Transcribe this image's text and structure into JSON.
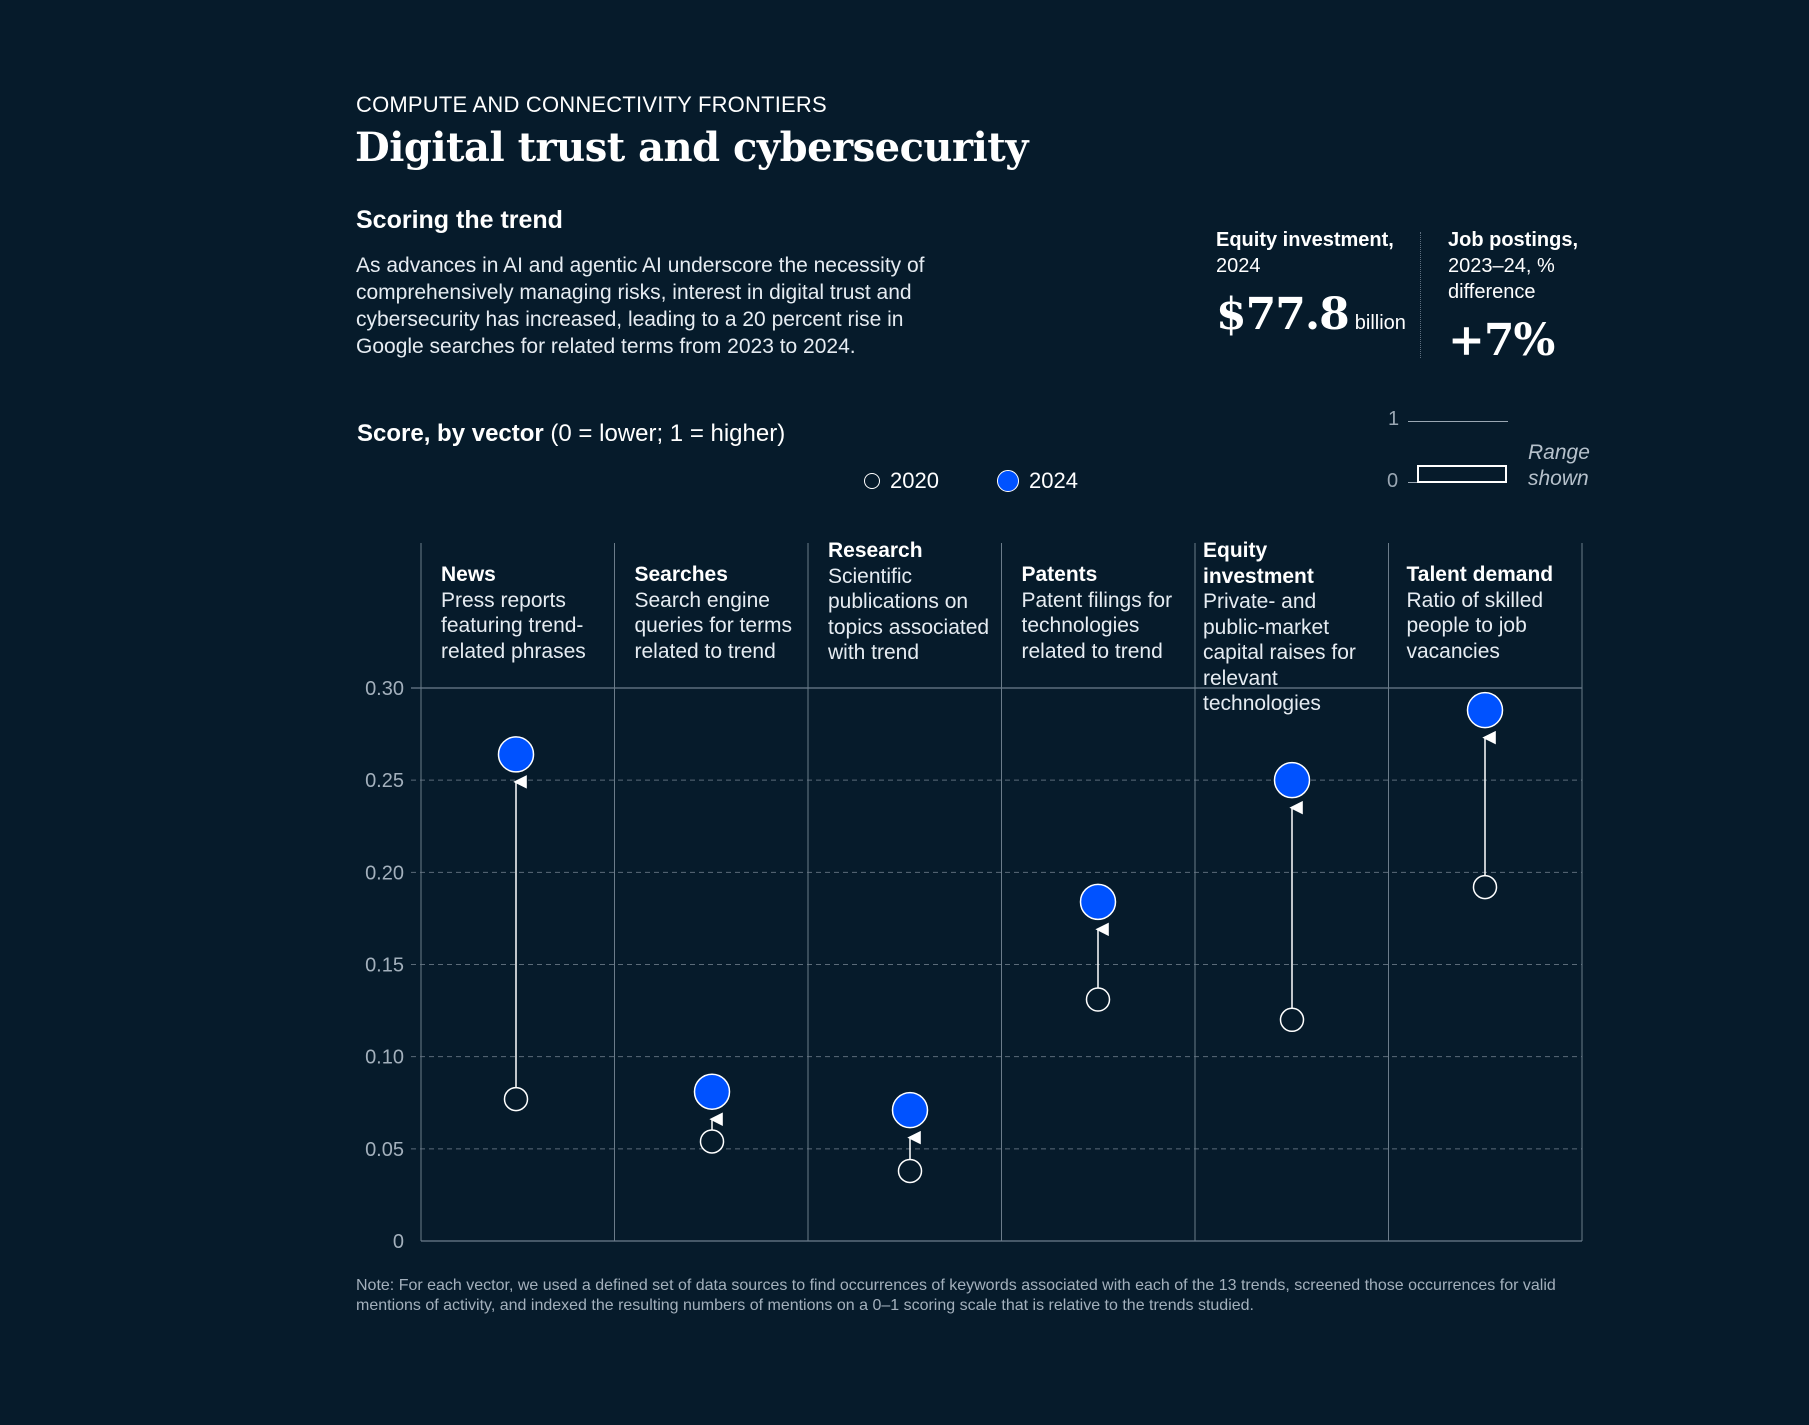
{
  "header": {
    "eyebrow": "COMPUTE AND CONNECTIVITY FRONTIERS",
    "title": "Digital trust and cybersecurity",
    "section_title": "Scoring the trend",
    "description": "As advances in AI and agentic AI underscore the necessity of comprehensively managing risks, interest in digital trust and cybersecurity has increased, leading to a 20 percent rise in Google searches for related terms from 2023 to 2024."
  },
  "stats": [
    {
      "label_bold": "Equity investment,",
      "label_rest": "2024",
      "value": "$77.8",
      "unit": "billion"
    },
    {
      "label_bold": "Job postings,",
      "label_rest": "2023–24, % difference",
      "value": "+7%",
      "unit": ""
    }
  ],
  "score_heading": {
    "bold": "Score, by vector",
    "rest": " (0 = lower; 1 = higher)"
  },
  "legend": {
    "item_2020": "2020",
    "item_2024": "2024"
  },
  "range_indicator": {
    "top": "1",
    "bottom": "0",
    "label_line1": "Range",
    "label_line2": "shown"
  },
  "colors": {
    "background": "#061b2b",
    "accent_2024": "#0052ff",
    "grid": "#5b6b79"
  },
  "chart_data": {
    "type": "scatter",
    "ylim": [
      0,
      0.3
    ],
    "ytick_labels": [
      "0",
      "0.05",
      "0.10",
      "0.15",
      "0.20",
      "0.25",
      "0.30"
    ],
    "yticks": [
      0,
      0.05,
      0.1,
      0.15,
      0.2,
      0.25,
      0.3
    ],
    "grid": "horizontal dashed",
    "categories": [
      {
        "name": "News",
        "description": "Press reports featuring trend-related phrases"
      },
      {
        "name": "Searches",
        "description": "Search engine queries for terms related to trend"
      },
      {
        "name": "Research",
        "description": "Scientific publications on topics associated with trend"
      },
      {
        "name": "Patents",
        "description": "Patent filings for technologies related to trend"
      },
      {
        "name": "Equity investment",
        "description": "Private- and public-market capital raises for relevant technologies"
      },
      {
        "name": "Talent demand",
        "description": "Ratio of skilled people to job vacancies"
      }
    ],
    "series": [
      {
        "name": "2020",
        "values": [
          0.077,
          0.054,
          0.038,
          0.131,
          0.12,
          0.192
        ]
      },
      {
        "name": "2024",
        "values": [
          0.264,
          0.081,
          0.071,
          0.184,
          0.25,
          0.288
        ]
      }
    ]
  },
  "note": "Note: For each vector, we used a defined set of data sources to find occurrences of keywords associated with each of the 13 trends, screened those occurrences for valid mentions of activity, and indexed the resulting numbers of mentions on a 0–1 scoring scale that is relative to the trends studied."
}
